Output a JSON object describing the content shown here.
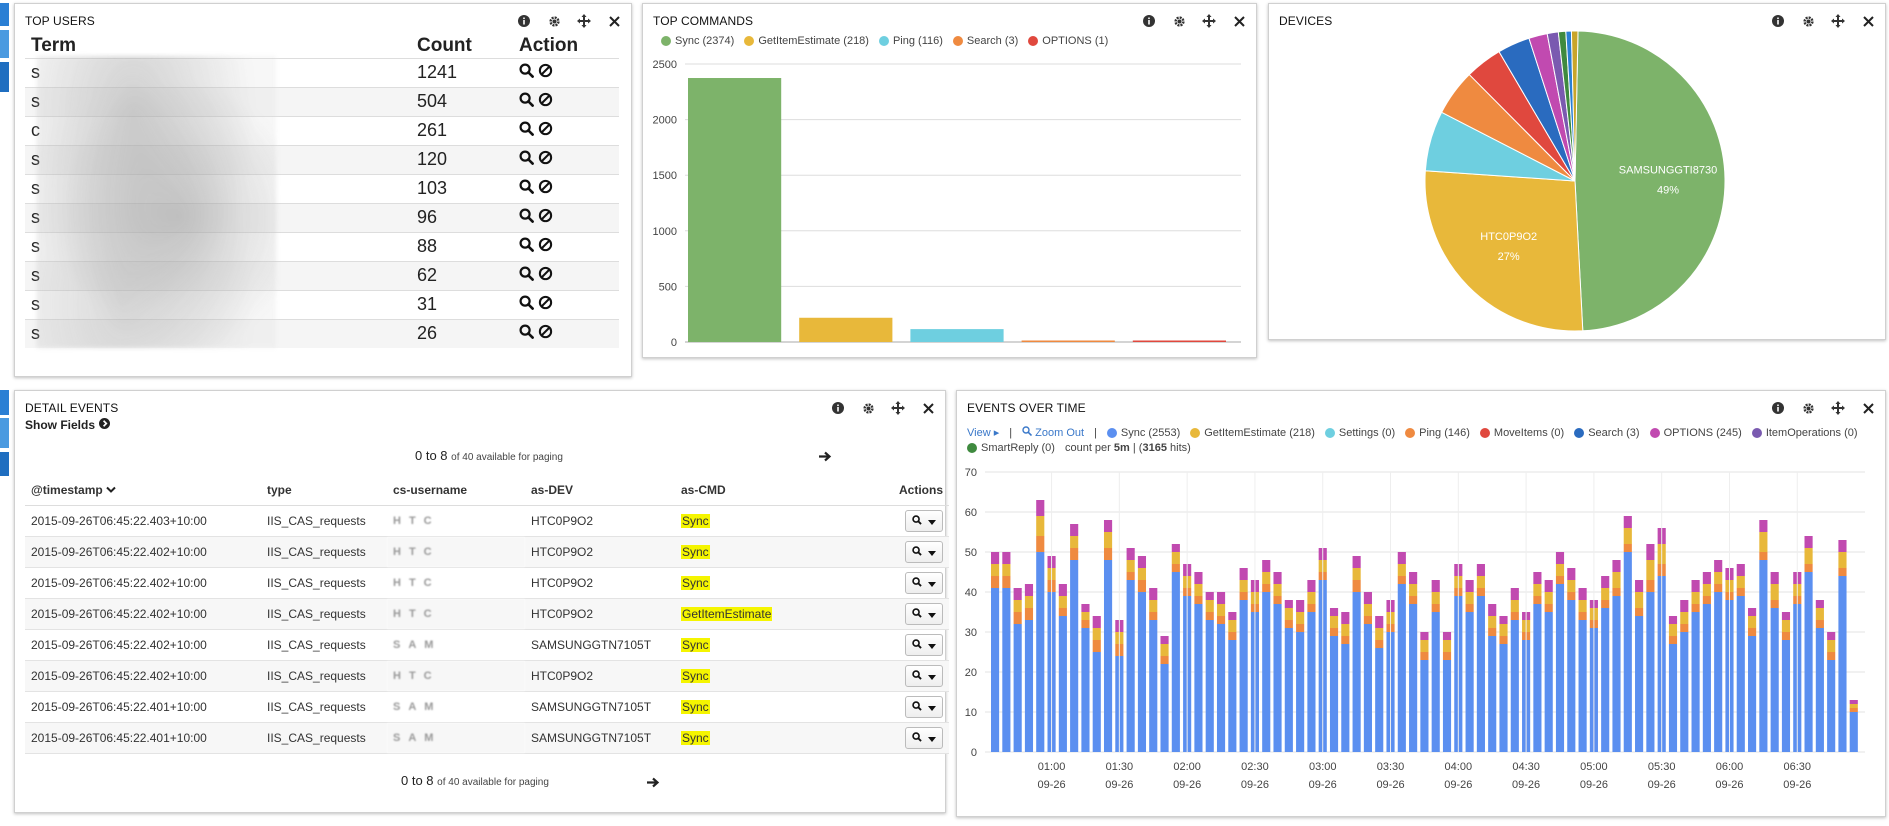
{
  "colors": {
    "green": "#7db36a",
    "yellow": "#e8b83a",
    "cyan": "#6ecfe0",
    "orange": "#ef8a40",
    "red": "#e0483e",
    "blue": "#5b8ff0",
    "darkblue": "#2a6bbf",
    "magenta": "#c14ab0",
    "purple": "#7a5ab0",
    "darkgreen": "#3f8a3f",
    "strip": "#2a7fd4"
  },
  "top_users": {
    "title": "TOP USERS",
    "headers": [
      "Term",
      "Count",
      "Action"
    ],
    "rows": [
      {
        "term": "s",
        "count": "1241"
      },
      {
        "term": "s",
        "count": "504"
      },
      {
        "term": "c",
        "count": "261"
      },
      {
        "term": "s",
        "count": "120"
      },
      {
        "term": "s",
        "count": "103"
      },
      {
        "term": "s",
        "count": "96"
      },
      {
        "term": "s",
        "count": "88"
      },
      {
        "term": "s",
        "count": "62"
      },
      {
        "term": "s",
        "count": "31"
      },
      {
        "term": "s",
        "count": "26"
      }
    ]
  },
  "top_commands": {
    "title": "TOP COMMANDS"
  },
  "devices": {
    "title": "DEVICES"
  },
  "detail_events": {
    "title": "DETAIL EVENTS",
    "show_fields": "Show Fields",
    "paging_main": "0 to 8",
    "paging_small": "of 40 available for paging",
    "headers": [
      "@timestamp",
      "type",
      "cs-username",
      "as-DEV",
      "as-CMD",
      "Actions"
    ],
    "rows": [
      {
        "ts": "2015-09-26T06:45:22.403+10:00",
        "type": "IIS_CAS_requests",
        "user": "HTC",
        "dev": "HTC0P9O2",
        "cmd": "Sync"
      },
      {
        "ts": "2015-09-26T06:45:22.402+10:00",
        "type": "IIS_CAS_requests",
        "user": "HTC",
        "dev": "HTC0P9O2",
        "cmd": "Sync"
      },
      {
        "ts": "2015-09-26T06:45:22.402+10:00",
        "type": "IIS_CAS_requests",
        "user": "HTC",
        "dev": "HTC0P9O2",
        "cmd": "Sync"
      },
      {
        "ts": "2015-09-26T06:45:22.402+10:00",
        "type": "IIS_CAS_requests",
        "user": "HTC",
        "dev": "HTC0P9O2",
        "cmd": "GetItemEstimate"
      },
      {
        "ts": "2015-09-26T06:45:22.402+10:00",
        "type": "IIS_CAS_requests",
        "user": "SAM",
        "dev": "SAMSUNGGTN7105T",
        "cmd": "Sync"
      },
      {
        "ts": "2015-09-26T06:45:22.402+10:00",
        "type": "IIS_CAS_requests",
        "user": "HTC",
        "dev": "HTC0P9O2",
        "cmd": "Sync"
      },
      {
        "ts": "2015-09-26T06:45:22.401+10:00",
        "type": "IIS_CAS_requests",
        "user": "SAM",
        "dev": "SAMSUNGGTN7105T",
        "cmd": "Sync"
      },
      {
        "ts": "2015-09-26T06:45:22.401+10:00",
        "type": "IIS_CAS_requests",
        "user": "SAM",
        "dev": "SAMSUNGGTN7105T",
        "cmd": "Sync"
      }
    ]
  },
  "events_over_time": {
    "title": "EVENTS OVER TIME",
    "view": "View",
    "zoom_out": "Zoom Out",
    "count_per": "count per",
    "interval": "5m",
    "hits_prefix": "(",
    "hits": "3165",
    "hits_suffix": "hits)"
  },
  "chart_data": [
    {
      "type": "bar",
      "panel": "TOP COMMANDS",
      "categories": [
        "Sync",
        "GetItemEstimate",
        "Ping",
        "Search",
        "OPTIONS"
      ],
      "values": [
        2374,
        218,
        116,
        3,
        1
      ],
      "legend": [
        "Sync (2374)",
        "GetItemEstimate (218)",
        "Ping (116)",
        "Search (3)",
        "OPTIONS (1)"
      ],
      "colors": [
        "#7db36a",
        "#e8b83a",
        "#6ecfe0",
        "#ef8a40",
        "#e0483e"
      ],
      "ylim": [
        0,
        2500
      ],
      "yticks": [
        0,
        500,
        1000,
        1500,
        2000,
        2500
      ]
    },
    {
      "type": "pie",
      "panel": "DEVICES",
      "slices": [
        {
          "label": "SAMSUNGGTI8730",
          "percent_label": "49%",
          "value": 49,
          "color": "#7db36a"
        },
        {
          "label": "HTC0P9O2",
          "percent_label": "27%",
          "value": 27,
          "color": "#e8b83a"
        },
        {
          "label": "",
          "value": 6.5,
          "color": "#6ecfe0"
        },
        {
          "label": "",
          "value": 5,
          "color": "#ef8a40"
        },
        {
          "label": "",
          "value": 4,
          "color": "#e0483e"
        },
        {
          "label": "",
          "value": 3.5,
          "color": "#2a6bbf"
        },
        {
          "label": "",
          "value": 2,
          "color": "#c14ab0"
        },
        {
          "label": "",
          "value": 1.2,
          "color": "#7a5ab0"
        },
        {
          "label": "",
          "value": 0.8,
          "color": "#3f8a3f"
        },
        {
          "label": "",
          "value": 0.6,
          "color": "#2a7fd4"
        },
        {
          "label": "",
          "value": 0.7,
          "color": "#c9a52a"
        }
      ]
    },
    {
      "type": "bar",
      "stacked": true,
      "panel": "EVENTS OVER TIME",
      "legend": [
        "Sync (2553)",
        "GetItemEstimate (218)",
        "Settings (0)",
        "Ping (146)",
        "MoveItems (0)",
        "Search (3)",
        "OPTIONS (245)",
        "ItemOperations (0)",
        "SmartReply (0)"
      ],
      "legend_colors": [
        "#5b8ff0",
        "#e8b83a",
        "#6ecfe0",
        "#ef8a40",
        "#e0483e",
        "#2a6bbf",
        "#c14ab0",
        "#7a5ab0",
        "#3f8a3f"
      ],
      "ylim": [
        0,
        70
      ],
      "yticks": [
        0,
        10,
        20,
        30,
        40,
        50,
        60,
        70
      ],
      "xtick_labels": [
        {
          "time": "01:00",
          "date": "09-26"
        },
        {
          "time": "01:30",
          "date": "09-26"
        },
        {
          "time": "02:00",
          "date": "09-26"
        },
        {
          "time": "02:30",
          "date": "09-26"
        },
        {
          "time": "03:00",
          "date": "09-26"
        },
        {
          "time": "03:30",
          "date": "09-26"
        },
        {
          "time": "04:00",
          "date": "09-26"
        },
        {
          "time": "04:30",
          "date": "09-26"
        },
        {
          "time": "05:00",
          "date": "09-26"
        },
        {
          "time": "05:30",
          "date": "09-26"
        },
        {
          "time": "06:00",
          "date": "09-26"
        },
        {
          "time": "06:30",
          "date": "09-26"
        }
      ],
      "series_order": [
        "Sync",
        "Ping",
        "GetItemEstimate",
        "OPTIONS"
      ],
      "series_colors": [
        "#5b8ff0",
        "#ef8a40",
        "#e8b83a",
        "#c14ab0"
      ],
      "bars": [
        [
          41,
          3,
          3,
          3
        ],
        [
          41,
          3,
          3,
          3
        ],
        [
          32,
          3,
          3,
          3
        ],
        [
          33,
          3,
          3,
          3
        ],
        [
          50,
          4,
          5,
          4
        ],
        [
          40,
          3,
          3,
          3
        ],
        [
          34,
          2,
          3,
          3
        ],
        [
          48,
          3,
          3,
          3
        ],
        [
          31,
          2,
          2,
          2
        ],
        [
          25,
          3,
          3,
          3
        ],
        [
          48,
          3,
          4,
          3
        ],
        [
          24,
          3,
          3,
          3
        ],
        [
          43,
          2,
          3,
          3
        ],
        [
          40,
          3,
          3,
          3
        ],
        [
          33,
          2,
          3,
          3
        ],
        [
          22,
          2,
          3,
          2
        ],
        [
          45,
          2,
          3,
          2
        ],
        [
          39,
          2,
          3,
          3
        ],
        [
          37,
          2,
          3,
          3
        ],
        [
          33,
          2,
          3,
          2
        ],
        [
          32,
          2,
          3,
          3
        ],
        [
          28,
          2,
          3,
          2
        ],
        [
          38,
          2,
          3,
          3
        ],
        [
          35,
          2,
          3,
          3
        ],
        [
          40,
          2,
          3,
          3
        ],
        [
          37,
          2,
          3,
          3
        ],
        [
          31,
          2,
          3,
          2
        ],
        [
          30,
          2,
          3,
          3
        ],
        [
          35,
          2,
          3,
          3
        ],
        [
          43,
          2,
          3,
          3
        ],
        [
          29,
          2,
          3,
          2
        ],
        [
          27,
          2,
          3,
          3
        ],
        [
          40,
          3,
          3,
          3
        ],
        [
          32,
          2,
          3,
          3
        ],
        [
          26,
          2,
          3,
          3
        ],
        [
          30,
          2,
          3,
          3
        ],
        [
          42,
          2,
          3,
          3
        ],
        [
          37,
          2,
          3,
          3
        ],
        [
          23,
          2,
          3,
          2
        ],
        [
          35,
          2,
          3,
          3
        ],
        [
          23,
          2,
          3,
          2
        ],
        [
          39,
          2,
          3,
          3
        ],
        [
          35,
          2,
          3,
          3
        ],
        [
          39,
          2,
          3,
          3
        ],
        [
          29,
          2,
          3,
          3
        ],
        [
          27,
          2,
          3,
          2
        ],
        [
          33,
          2,
          3,
          3
        ],
        [
          28,
          2,
          3,
          2
        ],
        [
          37,
          2,
          3,
          3
        ],
        [
          35,
          2,
          3,
          3
        ],
        [
          42,
          2,
          3,
          3
        ],
        [
          38,
          2,
          3,
          3
        ],
        [
          33,
          2,
          3,
          3
        ],
        [
          31,
          2,
          3,
          2
        ],
        [
          36,
          2,
          3,
          3
        ],
        [
          39,
          2,
          4,
          3
        ],
        [
          50,
          2,
          4,
          3
        ],
        [
          34,
          2,
          4,
          3
        ],
        [
          40,
          3,
          5,
          4
        ],
        [
          44,
          3,
          5,
          4
        ],
        [
          27,
          2,
          3,
          2
        ],
        [
          30,
          2,
          3,
          3
        ],
        [
          35,
          2,
          3,
          3
        ],
        [
          37,
          2,
          3,
          3
        ],
        [
          40,
          2,
          3,
          3
        ],
        [
          38,
          2,
          3,
          3
        ],
        [
          39,
          2,
          3,
          3
        ],
        [
          29,
          2,
          3,
          2
        ],
        [
          48,
          2,
          5,
          3
        ],
        [
          36,
          2,
          4,
          3
        ],
        [
          28,
          2,
          3,
          2
        ],
        [
          37,
          2,
          3,
          3
        ],
        [
          45,
          2,
          4,
          3
        ],
        [
          31,
          2,
          3,
          2
        ],
        [
          23,
          2,
          3,
          2
        ],
        [
          44,
          2,
          4,
          3
        ],
        [
          10,
          1,
          1,
          1
        ]
      ]
    }
  ]
}
